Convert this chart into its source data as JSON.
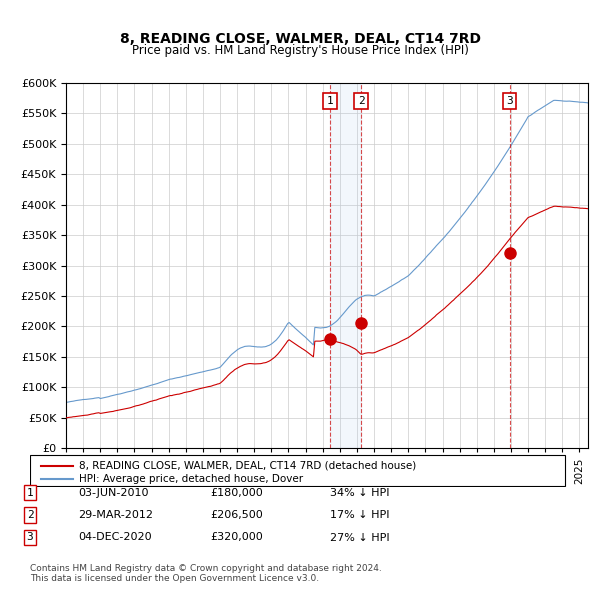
{
  "title": "8, READING CLOSE, WALMER, DEAL, CT14 7RD",
  "subtitle": "Price paid vs. HM Land Registry's House Price Index (HPI)",
  "ylabel_values": [
    "£0",
    "£50K",
    "£100K",
    "£150K",
    "£200K",
    "£250K",
    "£300K",
    "£350K",
    "£400K",
    "£450K",
    "£500K",
    "£550K",
    "£600K"
  ],
  "ytick_values": [
    0,
    50000,
    100000,
    150000,
    200000,
    250000,
    300000,
    350000,
    400000,
    450000,
    500000,
    550000,
    600000
  ],
  "hpi_color": "#6699cc",
  "property_color": "#cc0000",
  "sale_marker_color": "#cc0000",
  "background_color": "#ffffff",
  "grid_color": "#cccccc",
  "legend_label_property": "8, READING CLOSE, WALMER, DEAL, CT14 7RD (detached house)",
  "legend_label_hpi": "HPI: Average price, detached house, Dover",
  "sales": [
    {
      "label": "1",
      "date": "03-JUN-2010",
      "price": 180000,
      "pct": "34%",
      "direction": "↓"
    },
    {
      "label": "2",
      "date": "29-MAR-2012",
      "price": 206500,
      "pct": "17%",
      "direction": "↓"
    },
    {
      "label": "3",
      "date": "04-DEC-2020",
      "price": 320000,
      "pct": "27%",
      "direction": "↓"
    }
  ],
  "sale_dates_decimal": [
    2010.42,
    2012.24,
    2020.92
  ],
  "footnote": "Contains HM Land Registry data © Crown copyright and database right 2024.\nThis data is licensed under the Open Government Licence v3.0.",
  "xmin": 1995.0,
  "xmax": 2025.5,
  "ymin": 0,
  "ymax": 600000,
  "shade_pairs": [
    [
      2010.42,
      2012.24
    ]
  ],
  "shade_color": "#ddeeff"
}
